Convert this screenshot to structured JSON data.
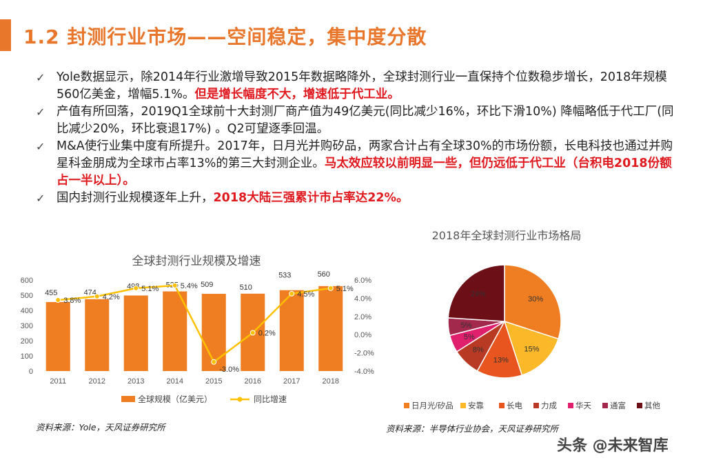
{
  "title": "1.2 封测行业市场——空间稳定，集中度分散",
  "bullets": [
    {
      "segments": [
        {
          "text": "Yole数据显示，除2014年行业激增导致2015年数据略降外，全球封测行业一直保持个位数稳步增长，2018年规模560亿美金，增幅5.1%。",
          "highlight": false
        },
        {
          "text": "但是增长幅度不大，增速低于代工业。",
          "highlight": true
        }
      ]
    },
    {
      "segments": [
        {
          "text": "产值有所回落，2019Q1全球前十大封测厂商产值为49亿美元(同比减少16%，环比下滑10%) 降幅略低于代工厂(同比减少20%，环比衰退17%) 。Q2可望逐季回温。",
          "highlight": false
        }
      ]
    },
    {
      "segments": [
        {
          "text": "M&A使行业集中度有所提升。2017年，日月光并购矽品，两家合计占有全球30%的市场份额，长电科技也通过并购星科金朋成为全球市占率13%的第三大封测企业。",
          "highlight": false
        },
        {
          "text": "马太效应较以前明显一些，但仍远低于代工业（台积电2018份额占一半以上）。",
          "highlight": true
        }
      ]
    },
    {
      "segments": [
        {
          "text": "国内封测行业规模逐年上升，",
          "highlight": false
        },
        {
          "text": "2018大陆三强累计市占率达22%。",
          "highlight": true
        }
      ]
    }
  ],
  "chart_data": [
    {
      "type": "bar",
      "title": "全球封测行业规模及增速",
      "categories": [
        "2011",
        "2012",
        "2013",
        "2014",
        "2015",
        "2016",
        "2017",
        "2018"
      ],
      "series": [
        {
          "name": "全球规模（亿美元）",
          "type": "bar",
          "axis": "left",
          "values": [
            455,
            474,
            498,
            525,
            509,
            510,
            533,
            560
          ],
          "labels": [
            "455",
            "474",
            "498",
            "525",
            "509",
            "510",
            "533",
            "560"
          ]
        },
        {
          "name": "同比增速",
          "type": "line",
          "axis": "right",
          "values": [
            3.8,
            4.2,
            5.1,
            5.4,
            -3.0,
            0.2,
            4.5,
            5.1
          ],
          "labels": [
            "3.8%",
            "4.2%",
            "5.1%",
            "5.4%",
            "-3.0%",
            "0.2%",
            "4.5%",
            "5.1%"
          ]
        }
      ],
      "yleft_ticks": [
        "600",
        "500",
        "400",
        "300",
        "200",
        "100",
        "0"
      ],
      "yright_ticks": [
        "6.0%",
        "4.0%",
        "2.0%",
        "0.0%",
        "-2.0%",
        "-4.0%"
      ],
      "ylim_left": [
        0,
        600
      ],
      "ylim_right": [
        -4,
        6
      ],
      "legend_position": "bottom",
      "colors": {
        "bar": "#ef7d22",
        "line": "#ffc000"
      }
    },
    {
      "type": "pie",
      "title": "2018年全球封测行业市场格局",
      "slices": [
        {
          "name": "日月光/矽品",
          "value": 30,
          "label": "30%",
          "color": "#ef7d22"
        },
        {
          "name": "安靠",
          "value": 15,
          "label": "15%",
          "color": "#fbb829"
        },
        {
          "name": "长电",
          "value": 13,
          "label": "13%",
          "color": "#e8551e"
        },
        {
          "name": "力成",
          "value": 8,
          "label": "8%",
          "color": "#b83a24"
        },
        {
          "name": "华天",
          "value": 5,
          "label": "5%",
          "color": "#e01f6d"
        },
        {
          "name": "通富",
          "value": 5,
          "label": "5%",
          "color": "#a2284c"
        },
        {
          "name": "其他",
          "value": 24,
          "label": "24%",
          "color": "#6d0f17"
        }
      ],
      "legend_position": "bottom"
    }
  ],
  "source1": "资料来源：Yole，天风证券研究所",
  "source2": "资料来源：半导体行业协会，天风证券研究所",
  "watermark": "头条 @未来智库"
}
